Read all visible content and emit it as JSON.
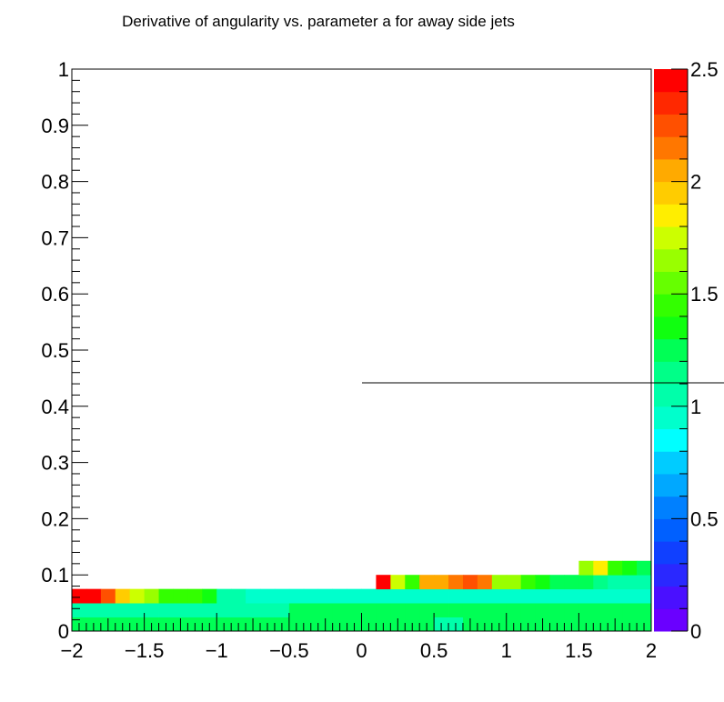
{
  "chart_data": {
    "type": "heatmap",
    "title": "Derivative of angularity vs. parameter a for away side jets",
    "xlabel": "",
    "ylabel": "",
    "xlim": [
      -2,
      2
    ],
    "ylim": [
      0,
      1
    ],
    "x_ticks": [
      "−2",
      "−1.5",
      "−1",
      "−0.5",
      "0",
      "0.5",
      "1",
      "1.5",
      "2"
    ],
    "y_ticks": [
      "0",
      "0.1",
      "0.2",
      "0.3",
      "0.4",
      "0.5",
      "0.6",
      "0.7",
      "0.8",
      "0.9",
      "1"
    ],
    "colorbar": {
      "range": [
        0,
        2.5
      ],
      "ticks": [
        "0",
        "0.5",
        "1",
        "1.5",
        "2",
        "2.5"
      ],
      "palette": [
        "#6a00ff",
        "#4a10ff",
        "#2a28ff",
        "#1040ff",
        "#0060ff",
        "#0080ff",
        "#00a8ff",
        "#00ccff",
        "#00ffff",
        "#00ffcc",
        "#00ffaa",
        "#00ff88",
        "#00ff55",
        "#10ff10",
        "#33ff00",
        "#66ff00",
        "#99ff00",
        "#ccff00",
        "#ffee00",
        "#ffcc00",
        "#ffaa00",
        "#ff7700",
        "#ff5000",
        "#ff2800",
        "#ff0000"
      ]
    },
    "x_bin_edges": [
      -2,
      -1.9,
      -1.8,
      -1.7,
      -1.6,
      -1.5,
      -1.4,
      -1.3,
      -1.2,
      -1.1,
      -1.0,
      -0.9,
      -0.8,
      -0.7,
      -0.6,
      -0.5,
      -0.4,
      -0.3,
      -0.2,
      -0.1,
      0,
      0.1,
      0.2,
      0.3,
      0.4,
      0.5,
      0.6,
      0.7,
      0.8,
      0.9,
      1.0,
      1.1,
      1.2,
      1.3,
      1.4,
      1.5,
      1.6,
      1.7,
      1.8,
      1.9,
      2.0
    ],
    "y_bin_edges": [
      0,
      0.025,
      0.05,
      0.075,
      0.1,
      0.125
    ],
    "z": [
      [
        1.2,
        1.2,
        1.2,
        1.2,
        1.2,
        1.2,
        1.2,
        1.2,
        1.2,
        1.2,
        1.2,
        1.2,
        1.2,
        1.2,
        1.2,
        1.2,
        1.2,
        1.2,
        1.2,
        1.2,
        1.2,
        1.2,
        1.2,
        1.2,
        1.2,
        1.05,
        1.05,
        1.2,
        1.2,
        1.2,
        1.2,
        1.2,
        1.2,
        1.2,
        1.2,
        1.2,
        1.2,
        1.2,
        1.2,
        1.2
      ],
      [
        1.05,
        1.05,
        1.05,
        1.05,
        1.05,
        1.05,
        1.05,
        1.05,
        1.05,
        1.05,
        1.05,
        1.05,
        1.05,
        1.05,
        1.05,
        1.2,
        1.2,
        1.2,
        1.2,
        1.2,
        1.2,
        1.2,
        1.2,
        1.2,
        1.2,
        1.2,
        1.2,
        1.2,
        1.2,
        1.2,
        1.2,
        1.2,
        1.2,
        1.2,
        1.2,
        1.2,
        1.2,
        1.2,
        1.2,
        1.2
      ],
      [
        2.45,
        2.45,
        2.2,
        1.95,
        1.75,
        1.6,
        1.45,
        1.45,
        1.45,
        1.3,
        1.05,
        1.05,
        0.97,
        0.97,
        0.95,
        0.95,
        0.95,
        0.95,
        0.95,
        0.95,
        0.95,
        0.95,
        0.95,
        0.95,
        0.95,
        0.95,
        0.95,
        0.95,
        0.95,
        0.95,
        0.95,
        0.95,
        0.95,
        0.95,
        0.95,
        0.95,
        0.95,
        0.95,
        0.95,
        0.95
      ],
      [
        null,
        null,
        null,
        null,
        null,
        null,
        null,
        null,
        null,
        null,
        null,
        null,
        null,
        null,
        null,
        null,
        null,
        null,
        null,
        null,
        null,
        2.45,
        1.7,
        1.45,
        2.0,
        2.0,
        2.1,
        2.2,
        2.15,
        1.65,
        1.65,
        1.45,
        1.35,
        1.2,
        1.2,
        1.2,
        1.1,
        1.0,
        1.0,
        1.0
      ],
      [
        null,
        null,
        null,
        null,
        null,
        null,
        null,
        null,
        null,
        null,
        null,
        null,
        null,
        null,
        null,
        null,
        null,
        null,
        null,
        null,
        null,
        null,
        null,
        null,
        null,
        null,
        null,
        null,
        null,
        null,
        null,
        null,
        null,
        null,
        null,
        1.65,
        1.8,
        1.45,
        1.3,
        1.2
      ]
    ]
  }
}
